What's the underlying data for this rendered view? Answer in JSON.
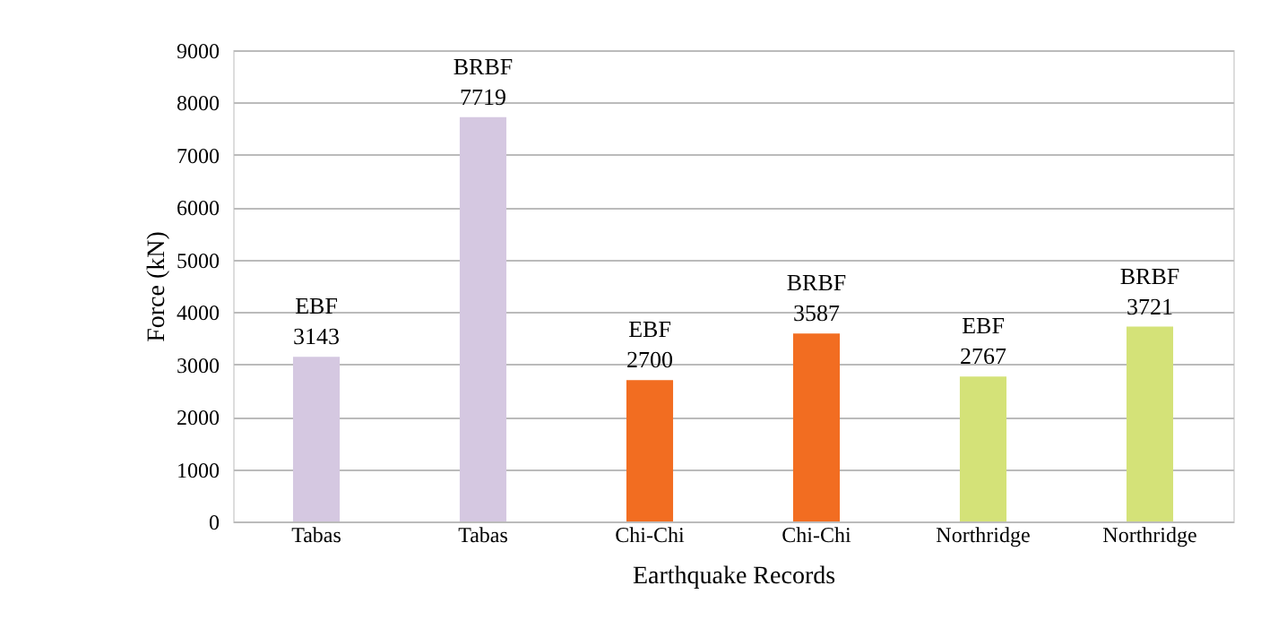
{
  "chart_data": {
    "type": "bar",
    "xlabel": "Earthquake Records",
    "ylabel": "Force (kN)",
    "categories": [
      "Tabas",
      "Tabas",
      "Chi-Chi",
      "Chi-Chi",
      "Northridge",
      "Northridge"
    ],
    "values": [
      3143,
      7719,
      2700,
      3587,
      2767,
      3721
    ],
    "colors": [
      "#d5c8e1",
      "#d5c8e1",
      "#f26d21",
      "#f26d21",
      "#d4e278",
      "#d4e278"
    ],
    "value_labels": [
      "EBF\n3143",
      "BRBF\n7719",
      "EBF\n2700",
      "BRBF\n3587",
      "EBF\n2767",
      "BRBF\n3721"
    ],
    "ylim": [
      0,
      9000
    ],
    "yticks": [
      0,
      1000,
      2000,
      3000,
      4000,
      5000,
      6000,
      7000,
      8000,
      9000
    ],
    "grid": "y"
  }
}
